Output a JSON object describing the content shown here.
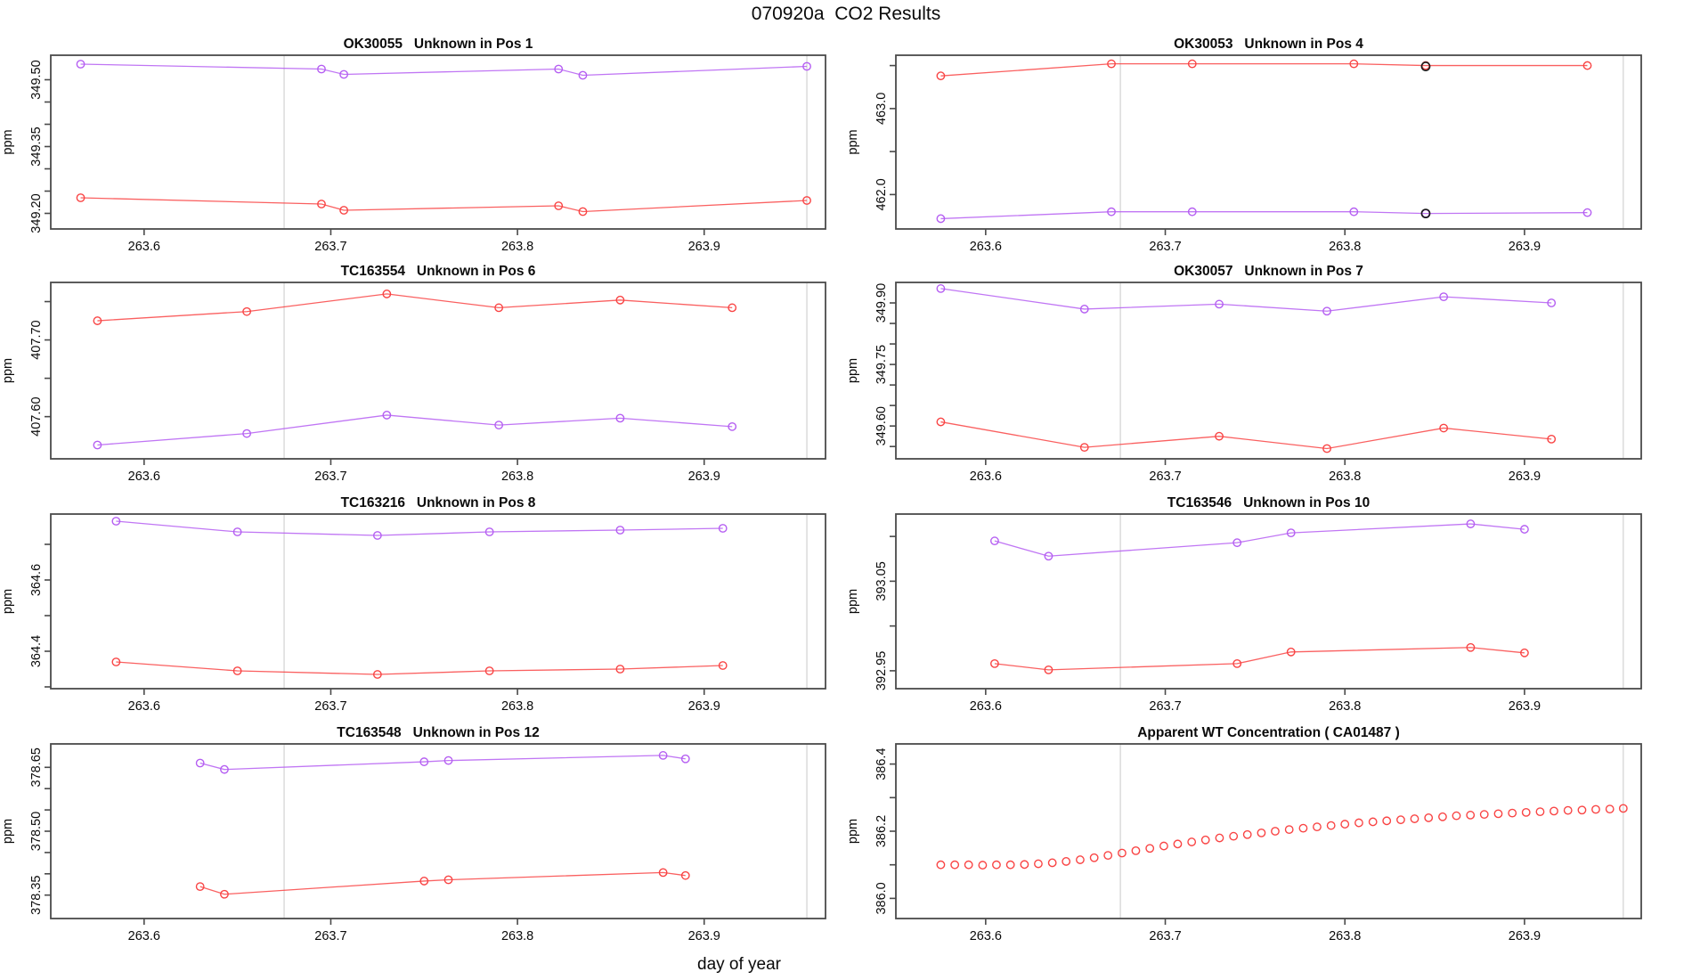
{
  "page_title": "070920a  CO2 Results",
  "xlabel": "day of year",
  "colors": {
    "red": "#f94444",
    "purple": "#b55ef2",
    "black": "#1a1a1a",
    "ref_line": "#d2d2d2",
    "axis": "#4a4a4a",
    "text": "#0a0a0a"
  },
  "chart_data": [
    {
      "type": "line",
      "title": "OK30055   Unknown in Pos 1",
      "ylabel": "ppm",
      "xlim": [
        263.55,
        263.965
      ],
      "ylim": [
        349.165,
        349.555
      ],
      "xticks": [
        {
          "v": 263.6,
          "label": "263.6"
        },
        {
          "v": 263.7,
          "label": "263.7"
        },
        {
          "v": 263.8,
          "label": "263.8"
        },
        {
          "v": 263.9,
          "label": "263.9"
        }
      ],
      "yticks": [
        {
          "v": 349.2,
          "label": "349.20"
        },
        {
          "v": 349.25,
          "label": ""
        },
        {
          "v": 349.3,
          "label": ""
        },
        {
          "v": 349.35,
          "label": "349.35"
        },
        {
          "v": 349.4,
          "label": ""
        },
        {
          "v": 349.45,
          "label": ""
        },
        {
          "v": 349.5,
          "label": "349.50"
        }
      ],
      "vlines": [
        263.675,
        263.955
      ],
      "series": [
        {
          "name": "purple",
          "color": "purple",
          "line": true,
          "x": [
            263.566,
            263.695,
            263.707,
            263.822,
            263.835,
            263.955
          ],
          "y": [
            349.535,
            349.524,
            349.512,
            349.524,
            349.51,
            349.53
          ]
        },
        {
          "name": "red",
          "color": "red",
          "line": true,
          "x": [
            263.566,
            263.695,
            263.707,
            263.822,
            263.835,
            263.955
          ],
          "y": [
            349.235,
            349.221,
            349.207,
            349.217,
            349.204,
            349.229
          ]
        }
      ],
      "overlay_points": []
    },
    {
      "type": "line",
      "title": "OK30053   Unknown in Pos 4",
      "ylabel": "ppm",
      "xlim": [
        263.55,
        263.965
      ],
      "ylim": [
        461.6,
        463.62
      ],
      "xticks": [
        {
          "v": 263.6,
          "label": "263.6"
        },
        {
          "v": 263.7,
          "label": "263.7"
        },
        {
          "v": 263.8,
          "label": "263.8"
        },
        {
          "v": 263.9,
          "label": "263.9"
        }
      ],
      "yticks": [
        {
          "v": 462.0,
          "label": "462.0"
        },
        {
          "v": 462.5,
          "label": ""
        },
        {
          "v": 463.0,
          "label": "463.0"
        },
        {
          "v": 463.5,
          "label": ""
        }
      ],
      "vlines": [
        263.675,
        263.955
      ],
      "series": [
        {
          "name": "red",
          "color": "red",
          "line": true,
          "x": [
            263.575,
            263.67,
            263.715,
            263.805,
            263.845,
            263.935
          ],
          "y": [
            463.38,
            463.52,
            463.52,
            463.52,
            463.5,
            463.5
          ]
        },
        {
          "name": "purple",
          "color": "purple",
          "line": true,
          "x": [
            263.575,
            263.67,
            263.715,
            263.805,
            263.845,
            263.935
          ],
          "y": [
            461.72,
            461.8,
            461.8,
            461.8,
            461.78,
            461.79
          ]
        }
      ],
      "overlay_points": [
        {
          "x": 263.845,
          "y": 463.49,
          "color": "black"
        },
        {
          "x": 263.845,
          "y": 461.78,
          "color": "black"
        }
      ]
    },
    {
      "type": "line",
      "title": "TC163554   Unknown in Pos 6",
      "ylabel": "ppm",
      "xlim": [
        263.55,
        263.965
      ],
      "ylim": [
        407.545,
        407.775
      ],
      "xticks": [
        {
          "v": 263.6,
          "label": "263.6"
        },
        {
          "v": 263.7,
          "label": "263.7"
        },
        {
          "v": 263.8,
          "label": "263.8"
        },
        {
          "v": 263.9,
          "label": "263.9"
        }
      ],
      "yticks": [
        {
          "v": 407.6,
          "label": "407.60"
        },
        {
          "v": 407.65,
          "label": ""
        },
        {
          "v": 407.7,
          "label": "407.70"
        },
        {
          "v": 407.75,
          "label": ""
        }
      ],
      "vlines": [
        263.675,
        263.955
      ],
      "series": [
        {
          "name": "red",
          "color": "red",
          "line": true,
          "x": [
            263.575,
            263.655,
            263.73,
            263.79,
            263.855,
            263.915
          ],
          "y": [
            407.725,
            407.737,
            407.76,
            407.742,
            407.752,
            407.742
          ]
        },
        {
          "name": "purple",
          "color": "purple",
          "line": true,
          "x": [
            263.575,
            263.655,
            263.73,
            263.79,
            263.855,
            263.915
          ],
          "y": [
            407.563,
            407.578,
            407.602,
            407.589,
            407.598,
            407.587
          ]
        }
      ],
      "overlay_points": []
    },
    {
      "type": "line",
      "title": "OK30057   Unknown in Pos 7",
      "ylabel": "ppm",
      "xlim": [
        263.55,
        263.965
      ],
      "ylim": [
        349.52,
        349.95
      ],
      "xticks": [
        {
          "v": 263.6,
          "label": "263.6"
        },
        {
          "v": 263.7,
          "label": "263.7"
        },
        {
          "v": 263.8,
          "label": "263.8"
        },
        {
          "v": 263.9,
          "label": "263.9"
        }
      ],
      "yticks": [
        {
          "v": 349.55,
          "label": ""
        },
        {
          "v": 349.6,
          "label": "349.60"
        },
        {
          "v": 349.65,
          "label": ""
        },
        {
          "v": 349.7,
          "label": ""
        },
        {
          "v": 349.75,
          "label": "349.75"
        },
        {
          "v": 349.8,
          "label": ""
        },
        {
          "v": 349.85,
          "label": ""
        },
        {
          "v": 349.9,
          "label": "349.90"
        }
      ],
      "vlines": [
        263.675,
        263.955
      ],
      "series": [
        {
          "name": "purple",
          "color": "purple",
          "line": true,
          "x": [
            263.575,
            263.655,
            263.73,
            263.79,
            263.855,
            263.915
          ],
          "y": [
            349.935,
            349.885,
            349.897,
            349.88,
            349.915,
            349.9
          ]
        },
        {
          "name": "red",
          "color": "red",
          "line": true,
          "x": [
            263.575,
            263.655,
            263.73,
            263.79,
            263.855,
            263.915
          ],
          "y": [
            349.61,
            349.548,
            349.575,
            349.545,
            349.595,
            349.568
          ]
        }
      ],
      "overlay_points": []
    },
    {
      "type": "line",
      "title": "TC163216   Unknown in Pos 8",
      "ylabel": "ppm",
      "xlim": [
        263.55,
        263.965
      ],
      "ylim": [
        364.295,
        364.785
      ],
      "xticks": [
        {
          "v": 263.6,
          "label": "263.6"
        },
        {
          "v": 263.7,
          "label": "263.7"
        },
        {
          "v": 263.8,
          "label": "263.8"
        },
        {
          "v": 263.9,
          "label": "263.9"
        }
      ],
      "yticks": [
        {
          "v": 364.3,
          "label": ""
        },
        {
          "v": 364.4,
          "label": "364.4"
        },
        {
          "v": 364.5,
          "label": ""
        },
        {
          "v": 364.6,
          "label": "364.6"
        },
        {
          "v": 364.7,
          "label": ""
        }
      ],
      "vlines": [
        263.675,
        263.955
      ],
      "series": [
        {
          "name": "purple",
          "color": "purple",
          "line": true,
          "x": [
            263.585,
            263.65,
            263.725,
            263.785,
            263.855,
            263.91
          ],
          "y": [
            364.765,
            364.735,
            364.725,
            364.735,
            364.74,
            364.745
          ]
        },
        {
          "name": "red",
          "color": "red",
          "line": true,
          "x": [
            263.585,
            263.65,
            263.725,
            263.785,
            263.855,
            263.91
          ],
          "y": [
            364.37,
            364.345,
            364.335,
            364.345,
            364.35,
            364.36
          ]
        }
      ],
      "overlay_points": []
    },
    {
      "type": "line",
      "title": "TC163546   Unknown in Pos 10",
      "ylabel": "ppm",
      "xlim": [
        263.55,
        263.965
      ],
      "ylim": [
        392.93,
        393.125
      ],
      "xticks": [
        {
          "v": 263.6,
          "label": "263.6"
        },
        {
          "v": 263.7,
          "label": "263.7"
        },
        {
          "v": 263.8,
          "label": "263.8"
        },
        {
          "v": 263.9,
          "label": "263.9"
        }
      ],
      "yticks": [
        {
          "v": 392.95,
          "label": "392.95"
        },
        {
          "v": 393.0,
          "label": ""
        },
        {
          "v": 393.05,
          "label": "393.05"
        },
        {
          "v": 393.1,
          "label": ""
        }
      ],
      "vlines": [
        263.675,
        263.955
      ],
      "series": [
        {
          "name": "purple",
          "color": "purple",
          "line": true,
          "x": [
            263.605,
            263.635,
            263.74,
            263.77,
            263.87,
            263.9
          ],
          "y": [
            393.095,
            393.078,
            393.093,
            393.104,
            393.114,
            393.108
          ]
        },
        {
          "name": "red",
          "color": "red",
          "line": true,
          "x": [
            263.605,
            263.635,
            263.74,
            263.77,
            263.87,
            263.9
          ],
          "y": [
            392.958,
            392.951,
            392.958,
            392.971,
            392.976,
            392.97
          ]
        }
      ],
      "overlay_points": []
    },
    {
      "type": "line",
      "title": "TC163548   Unknown in Pos 12",
      "ylabel": "ppm",
      "xlim": [
        263.55,
        263.965
      ],
      "ylim": [
        378.295,
        378.705
      ],
      "xticks": [
        {
          "v": 263.6,
          "label": "263.6"
        },
        {
          "v": 263.7,
          "label": "263.7"
        },
        {
          "v": 263.8,
          "label": "263.8"
        },
        {
          "v": 263.9,
          "label": "263.9"
        }
      ],
      "yticks": [
        {
          "v": 378.35,
          "label": "378.35"
        },
        {
          "v": 378.4,
          "label": ""
        },
        {
          "v": 378.45,
          "label": ""
        },
        {
          "v": 378.5,
          "label": "378.50"
        },
        {
          "v": 378.55,
          "label": ""
        },
        {
          "v": 378.6,
          "label": ""
        },
        {
          "v": 378.65,
          "label": "378.65"
        }
      ],
      "vlines": [
        263.675,
        263.955
      ],
      "series": [
        {
          "name": "purple",
          "color": "purple",
          "line": true,
          "x": [
            263.63,
            263.643,
            263.75,
            263.763,
            263.878,
            263.89
          ],
          "y": [
            378.66,
            378.645,
            378.663,
            378.666,
            378.678,
            378.67
          ]
        },
        {
          "name": "red",
          "color": "red",
          "line": true,
          "x": [
            263.63,
            263.643,
            263.75,
            263.763,
            263.878,
            263.89
          ],
          "y": [
            378.37,
            378.352,
            378.383,
            378.386,
            378.403,
            378.396
          ]
        }
      ],
      "overlay_points": []
    },
    {
      "type": "scatter",
      "title": "Apparent WT Concentration ( CA01487 )",
      "ylabel": "ppm",
      "xlim": [
        263.55,
        263.965
      ],
      "ylim": [
        385.94,
        386.46
      ],
      "xticks": [
        {
          "v": 263.6,
          "label": "263.6"
        },
        {
          "v": 263.7,
          "label": "263.7"
        },
        {
          "v": 263.8,
          "label": "263.8"
        },
        {
          "v": 263.9,
          "label": "263.9"
        }
      ],
      "yticks": [
        {
          "v": 386.0,
          "label": "386.0"
        },
        {
          "v": 386.1,
          "label": ""
        },
        {
          "v": 386.2,
          "label": "386.2"
        },
        {
          "v": 386.3,
          "label": ""
        },
        {
          "v": 386.4,
          "label": "386.4"
        }
      ],
      "vlines": [
        263.675,
        263.955
      ],
      "series": [
        {
          "name": "red",
          "color": "red",
          "line": false,
          "x": [
            263.575,
            263.5828,
            263.5905,
            263.5983,
            263.606,
            263.6138,
            263.6216,
            263.6293,
            263.6371,
            263.6448,
            263.6526,
            263.6604,
            263.6681,
            263.6759,
            263.6836,
            263.6914,
            263.6992,
            263.7069,
            263.7147,
            263.7224,
            263.7302,
            263.738,
            263.7457,
            263.7535,
            263.7612,
            263.769,
            263.7768,
            263.7845,
            263.7923,
            263.8,
            263.8078,
            263.8156,
            263.8233,
            263.8311,
            263.8388,
            263.8466,
            263.8544,
            263.8621,
            263.8699,
            263.8776,
            263.8854,
            263.8932,
            263.9009,
            263.9087,
            263.9164,
            263.9242,
            263.932,
            263.9397,
            263.9475,
            263.955
          ],
          "y": [
            386.1,
            386.1,
            386.1,
            386.099,
            386.1,
            386.1,
            386.101,
            386.103,
            386.106,
            386.11,
            386.115,
            386.121,
            386.128,
            386.135,
            386.142,
            386.149,
            386.156,
            386.162,
            386.168,
            386.174,
            386.18,
            386.185,
            386.19,
            386.195,
            386.2,
            386.205,
            386.209,
            386.213,
            386.217,
            386.221,
            386.225,
            386.228,
            386.231,
            386.234,
            386.237,
            386.24,
            386.243,
            386.246,
            386.248,
            386.25,
            386.252,
            386.254,
            386.256,
            386.258,
            386.26,
            386.262,
            386.263,
            386.265,
            386.266,
            386.268
          ]
        }
      ],
      "overlay_points": []
    }
  ]
}
